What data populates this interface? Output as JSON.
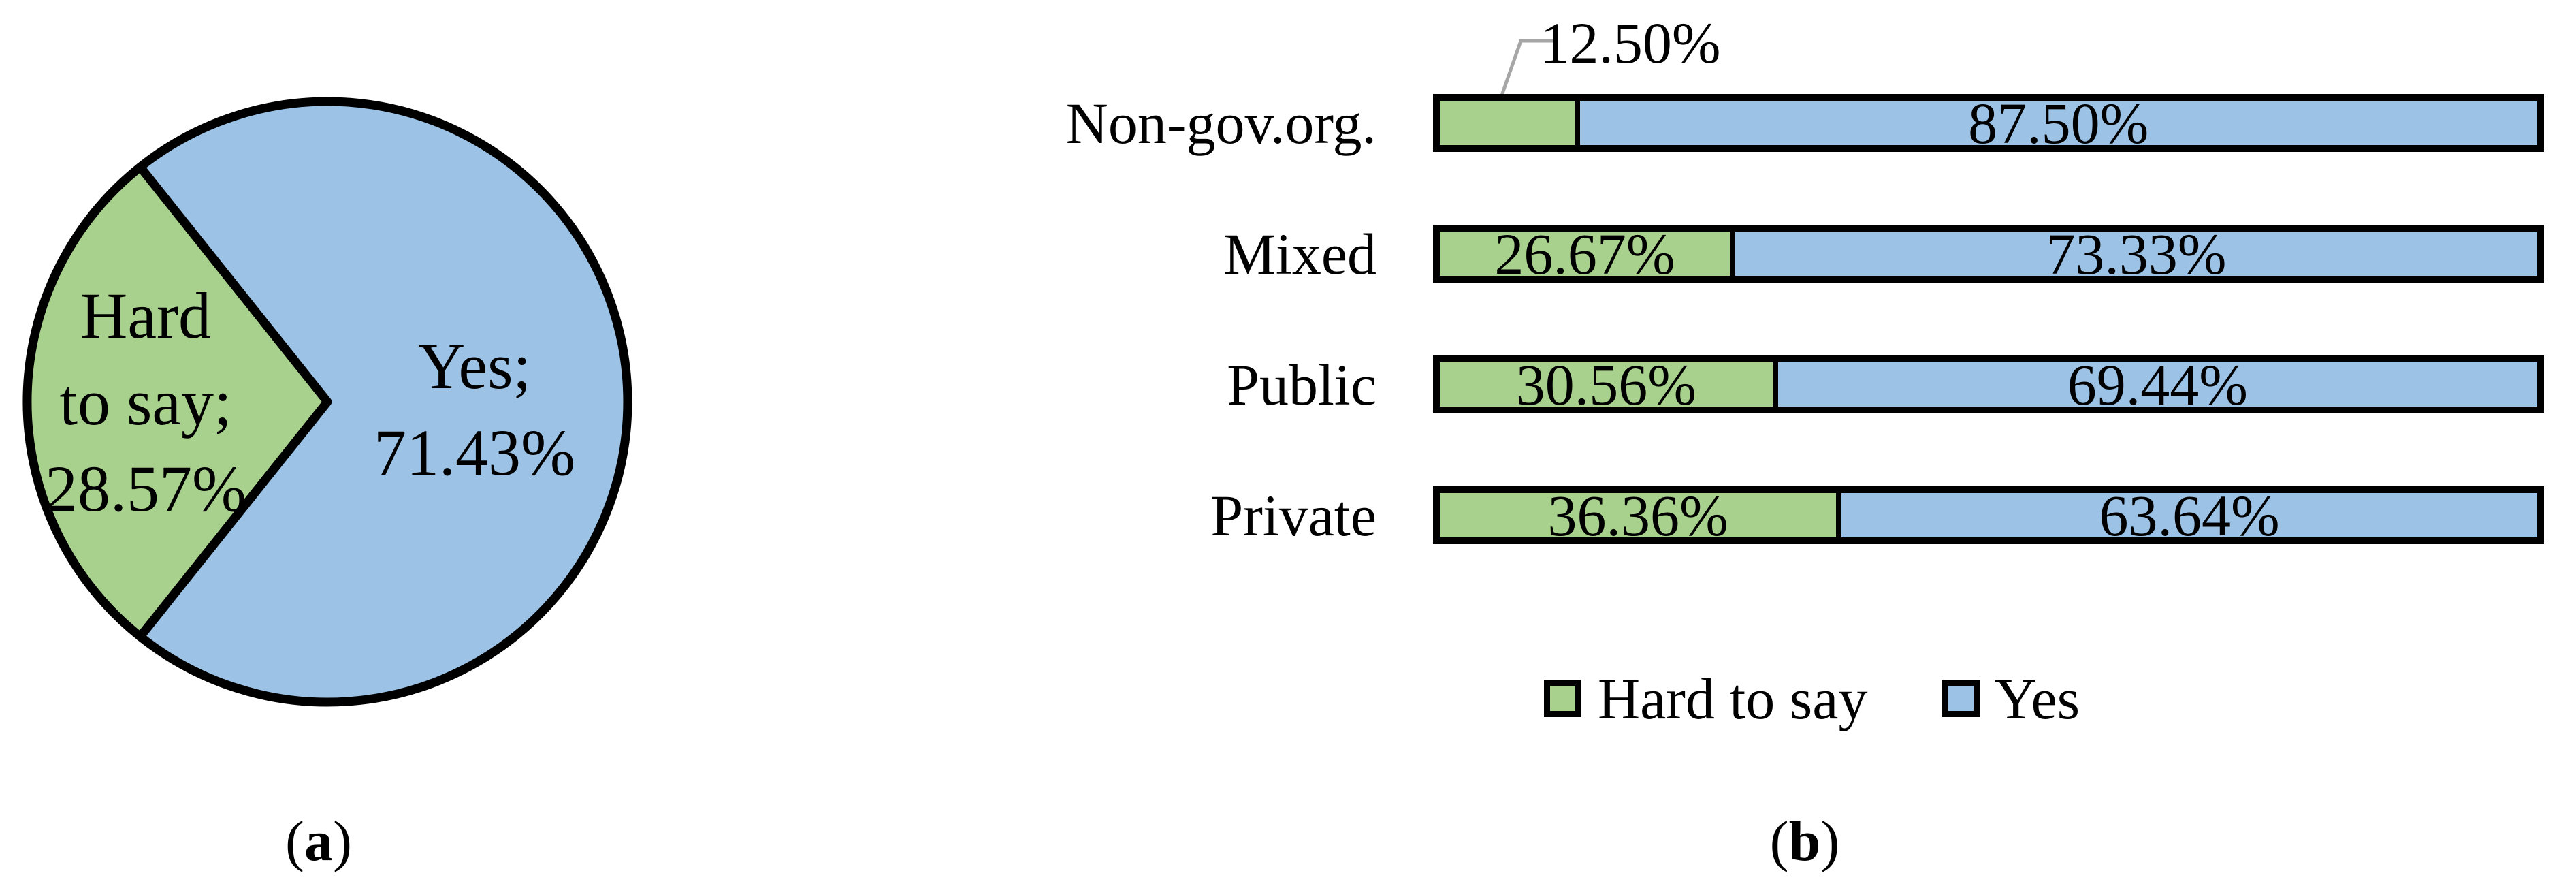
{
  "figure": {
    "panels": [
      {
        "id": "a",
        "caption": {
          "open": "(",
          "letter": "a",
          "close": ")"
        }
      },
      {
        "id": "b",
        "caption": {
          "open": "(",
          "letter": "b",
          "close": ")"
        }
      }
    ]
  },
  "colors": {
    "hard_to_say": "#A9D18E",
    "yes": "#9CC3E6",
    "outline": "#000000",
    "leader_line": "#A6A6A6",
    "text": "#000000",
    "background": "#FFFFFF"
  },
  "legend": {
    "position": "bottom",
    "items": [
      {
        "label": "Hard to say",
        "color": "#A9D18E"
      },
      {
        "label": "Yes",
        "color": "#9CC3E6"
      }
    ]
  },
  "chart_data": [
    {
      "type": "pie",
      "panel": "a",
      "slices": [
        {
          "name": "Hard to say",
          "value": 28.57,
          "label_lines": [
            "Hard",
            "to say;",
            "28.57%"
          ],
          "color": "#A9D18E"
        },
        {
          "name": "Yes",
          "value": 71.43,
          "label_lines": [
            "Yes;",
            "71.43%"
          ],
          "color": "#9CC3E6"
        }
      ],
      "slice_label_style": "name; percent",
      "outline_color": "#000000"
    },
    {
      "type": "bar",
      "panel": "b",
      "orientation": "horizontal-stacked",
      "categories": [
        "Non-gov.org.",
        "Mixed",
        "Public",
        "Private"
      ],
      "series": [
        {
          "name": "Hard to say",
          "color": "#A9D18E",
          "values": [
            12.5,
            26.67,
            30.56,
            36.36
          ],
          "labels": [
            "12.50%",
            "26.67%",
            "30.56%",
            "36.36%"
          ]
        },
        {
          "name": "Yes",
          "color": "#9CC3E6",
          "values": [
            87.5,
            73.33,
            69.44,
            63.64
          ],
          "labels": [
            "87.50%",
            "73.33%",
            "69.44%",
            "63.64%"
          ]
        }
      ],
      "xlim": [
        0,
        100
      ],
      "grid": false,
      "callout": {
        "text": "12.50%",
        "category": "Non-gov.org.",
        "series": "Hard to say"
      },
      "legend_position": "bottom"
    }
  ]
}
